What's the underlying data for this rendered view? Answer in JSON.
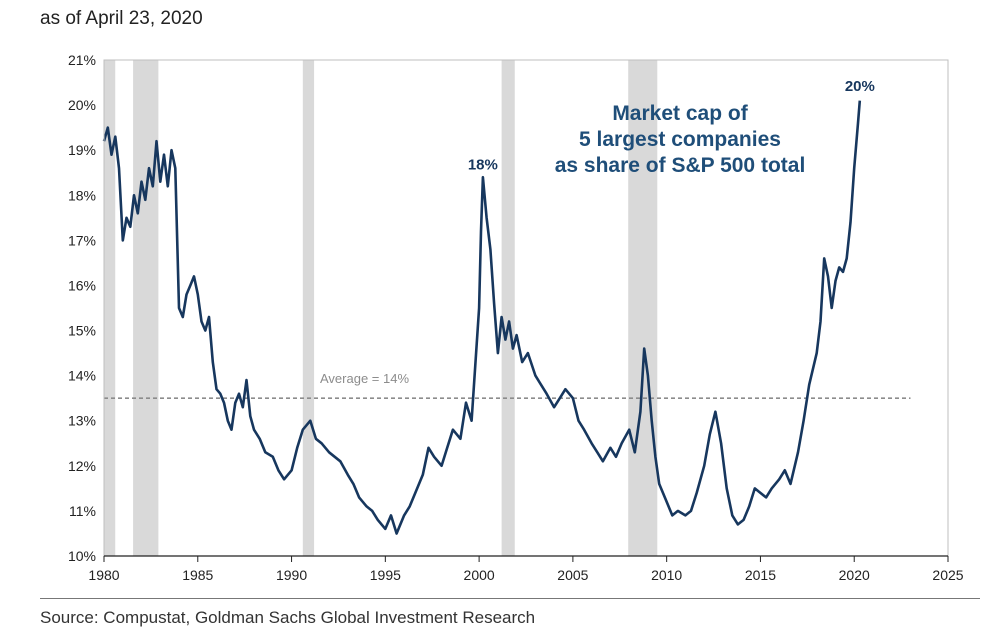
{
  "subtitle": "as of April 23, 2020",
  "source": "Source: Compustat, Goldman Sachs Global Investment Research",
  "chart_data": {
    "type": "line",
    "title": "Market cap of 5 largest companies as share of S&P 500 total",
    "title_lines": [
      "Market cap of",
      "5 largest companies",
      "as share of S&P 500 total"
    ],
    "xlabel": "",
    "ylabel": "",
    "xlim": [
      1980,
      2025
    ],
    "ylim": [
      10,
      21
    ],
    "x_ticks": [
      1980,
      1985,
      1990,
      1995,
      2000,
      2005,
      2010,
      2015,
      2020,
      2025
    ],
    "y_ticks": [
      10,
      11,
      12,
      13,
      14,
      15,
      16,
      17,
      18,
      19,
      20,
      21
    ],
    "y_tick_suffix": "%",
    "grid": false,
    "colors": {
      "series": "#17375e",
      "recession": "#d9d9d9",
      "average": "#8c8c8c",
      "axis": "#222222"
    },
    "recessions": [
      [
        1980.0,
        1980.6
      ],
      [
        1981.55,
        1982.9
      ],
      [
        1990.6,
        1991.2
      ],
      [
        2001.2,
        2001.9
      ],
      [
        2007.95,
        2009.5
      ]
    ],
    "average": {
      "value": 13.5,
      "label": "Average = 14%",
      "x_start": 1980,
      "x_end": 2023
    },
    "annotations": [
      {
        "text": "18%",
        "x": 2000.2,
        "y": 18.3
      },
      {
        "text": "20%",
        "x": 2020.3,
        "y": 20.05
      }
    ],
    "series": [
      {
        "name": "Market cap of 5 largest companies as share of S&P 500 total",
        "x": [
          1980.0,
          1980.2,
          1980.4,
          1980.6,
          1980.8,
          1981.0,
          1981.2,
          1981.4,
          1981.6,
          1981.8,
          1982.0,
          1982.2,
          1982.4,
          1982.6,
          1982.8,
          1983.0,
          1983.2,
          1983.4,
          1983.6,
          1983.8,
          1984.0,
          1984.2,
          1984.4,
          1984.6,
          1984.8,
          1985.0,
          1985.2,
          1985.4,
          1985.6,
          1985.8,
          1986.0,
          1986.2,
          1986.4,
          1986.6,
          1986.8,
          1987.0,
          1987.2,
          1987.4,
          1987.6,
          1987.8,
          1988.0,
          1988.3,
          1988.6,
          1989.0,
          1989.3,
          1989.6,
          1990.0,
          1990.3,
          1990.6,
          1991.0,
          1991.3,
          1991.6,
          1992.0,
          1992.3,
          1992.6,
          1993.0,
          1993.3,
          1993.6,
          1994.0,
          1994.3,
          1994.6,
          1995.0,
          1995.3,
          1995.6,
          1996.0,
          1996.3,
          1996.6,
          1997.0,
          1997.3,
          1997.6,
          1998.0,
          1998.3,
          1998.6,
          1999.0,
          1999.3,
          1999.6,
          2000.0,
          2000.1,
          2000.2,
          2000.4,
          2000.6,
          2000.8,
          2001.0,
          2001.2,
          2001.4,
          2001.6,
          2001.8,
          2002.0,
          2002.3,
          2002.6,
          2003.0,
          2003.3,
          2003.6,
          2004.0,
          2004.3,
          2004.6,
          2005.0,
          2005.3,
          2005.6,
          2006.0,
          2006.3,
          2006.6,
          2007.0,
          2007.3,
          2007.6,
          2008.0,
          2008.3,
          2008.6,
          2008.8,
          2009.0,
          2009.2,
          2009.4,
          2009.6,
          2010.0,
          2010.3,
          2010.6,
          2011.0,
          2011.3,
          2011.6,
          2012.0,
          2012.3,
          2012.6,
          2012.9,
          2013.2,
          2013.5,
          2013.8,
          2014.1,
          2014.4,
          2014.7,
          2015.0,
          2015.3,
          2015.6,
          2016.0,
          2016.3,
          2016.6,
          2017.0,
          2017.3,
          2017.6,
          2018.0,
          2018.2,
          2018.4,
          2018.6,
          2018.8,
          2019.0,
          2019.2,
          2019.4,
          2019.6,
          2019.8,
          2020.0,
          2020.2,
          2020.3
        ],
        "values": [
          19.2,
          19.5,
          18.9,
          19.3,
          18.6,
          17.0,
          17.5,
          17.3,
          18.0,
          17.6,
          18.3,
          17.9,
          18.6,
          18.2,
          19.2,
          18.3,
          18.9,
          18.2,
          19.0,
          18.6,
          15.5,
          15.3,
          15.8,
          16.0,
          16.2,
          15.8,
          15.2,
          15.0,
          15.3,
          14.3,
          13.7,
          13.6,
          13.4,
          13.0,
          12.8,
          13.4,
          13.6,
          13.3,
          13.9,
          13.1,
          12.8,
          12.6,
          12.3,
          12.2,
          11.9,
          11.7,
          11.9,
          12.4,
          12.8,
          13.0,
          12.6,
          12.5,
          12.3,
          12.2,
          12.1,
          11.8,
          11.6,
          11.3,
          11.1,
          11.0,
          10.8,
          10.6,
          10.9,
          10.5,
          10.9,
          11.1,
          11.4,
          11.8,
          12.4,
          12.2,
          12.0,
          12.4,
          12.8,
          12.6,
          13.4,
          13.0,
          15.5,
          17.2,
          18.4,
          17.5,
          16.8,
          15.6,
          14.5,
          15.3,
          14.8,
          15.2,
          14.6,
          14.9,
          14.3,
          14.5,
          14.0,
          13.8,
          13.6,
          13.3,
          13.5,
          13.7,
          13.5,
          13.0,
          12.8,
          12.5,
          12.3,
          12.1,
          12.4,
          12.2,
          12.5,
          12.8,
          12.3,
          13.2,
          14.6,
          14.0,
          13.0,
          12.2,
          11.6,
          11.2,
          10.9,
          11.0,
          10.9,
          11.0,
          11.4,
          12.0,
          12.7,
          13.2,
          12.5,
          11.5,
          10.9,
          10.7,
          10.8,
          11.1,
          11.5,
          11.4,
          11.3,
          11.5,
          11.7,
          11.9,
          11.6,
          12.3,
          13.0,
          13.8,
          14.5,
          15.2,
          16.6,
          16.2,
          15.5,
          16.1,
          16.4,
          16.3,
          16.6,
          17.4,
          18.6,
          19.6,
          20.1
        ]
      }
    ]
  }
}
